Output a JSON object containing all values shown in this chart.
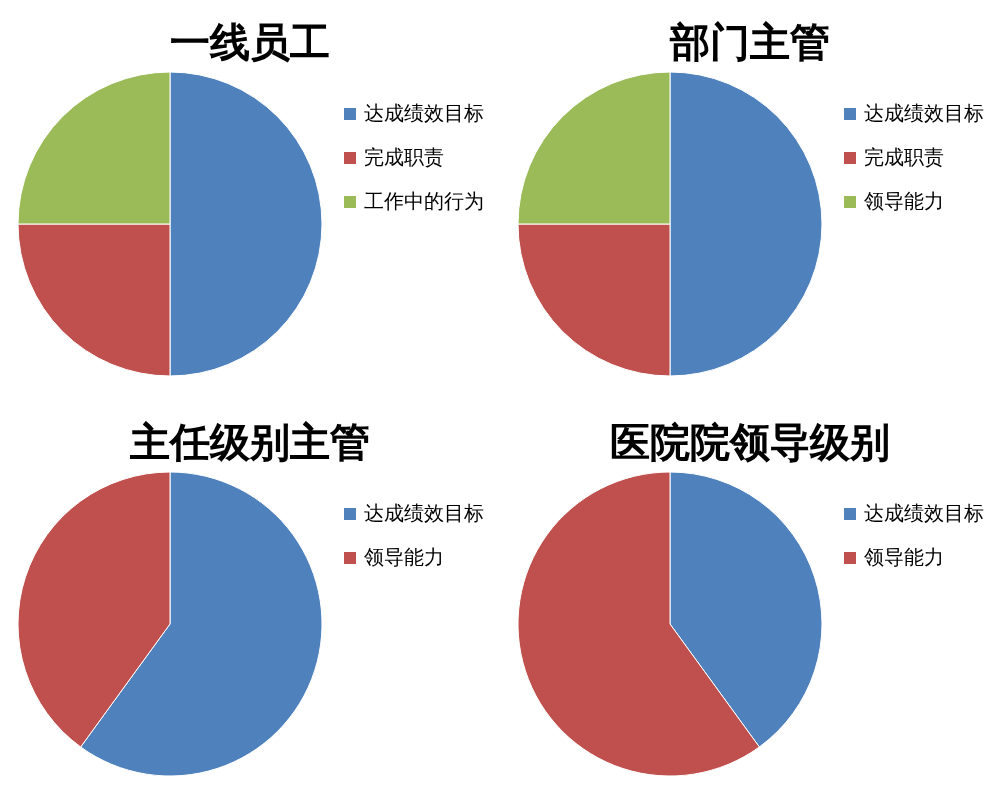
{
  "chart_data": [
    {
      "type": "pie",
      "title": "一线员工",
      "categories": [
        "达成绩效目标",
        "完成职责",
        "工作中的行为"
      ],
      "values": [
        50,
        25,
        25
      ],
      "colors": [
        "#4f81bd",
        "#c0504d",
        "#9bbb59"
      ],
      "legend": "right"
    },
    {
      "type": "pie",
      "title": "部门主管",
      "categories": [
        "达成绩效目标",
        "完成职责",
        "领导能力"
      ],
      "values": [
        50,
        25,
        25
      ],
      "colors": [
        "#4f81bd",
        "#c0504d",
        "#9bbb59"
      ],
      "legend": "right"
    },
    {
      "type": "pie",
      "title": "主任级别主管",
      "categories": [
        "达成绩效目标",
        "领导能力"
      ],
      "values": [
        60,
        40
      ],
      "colors": [
        "#4f81bd",
        "#c0504d"
      ],
      "legend": "right"
    },
    {
      "type": "pie",
      "title": "医院院领导级别",
      "categories": [
        "达成绩效目标",
        "领导能力"
      ],
      "values": [
        40,
        60
      ],
      "colors": [
        "#4f81bd",
        "#c0504d"
      ],
      "legend": "right"
    }
  ]
}
